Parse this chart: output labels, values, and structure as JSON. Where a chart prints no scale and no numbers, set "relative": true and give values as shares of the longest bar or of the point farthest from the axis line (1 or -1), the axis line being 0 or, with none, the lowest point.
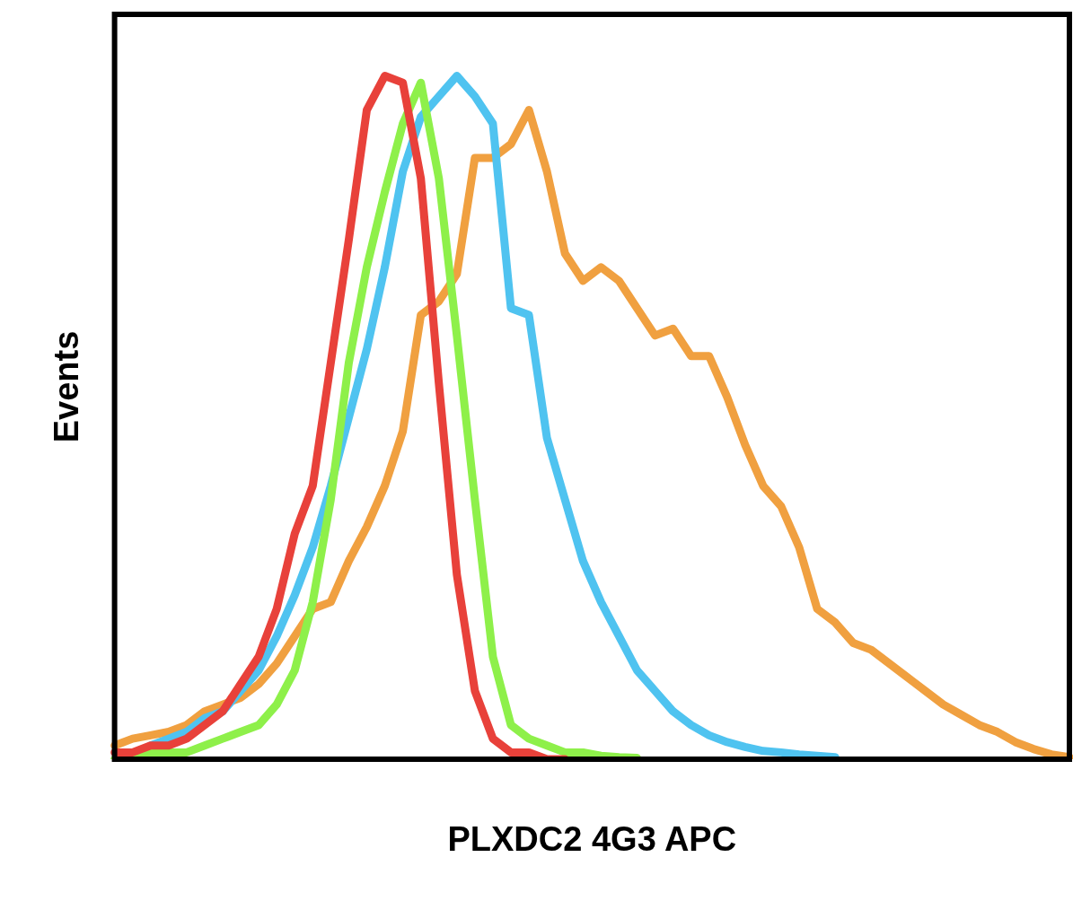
{
  "chart_data": {
    "type": "line",
    "relative": true,
    "xlabel": "PLXDC2 4G3 APC",
    "ylabel": "Events",
    "grid": false,
    "legend": false,
    "marker": "none",
    "line_style": "solid",
    "categories": [
      null,
      null,
      null,
      null,
      null,
      null,
      null,
      null,
      null,
      null,
      null,
      null,
      null,
      null,
      null,
      null,
      null,
      null,
      null,
      null,
      null,
      null,
      null,
      null,
      null,
      null,
      null,
      null,
      null,
      null,
      null,
      null,
      null,
      null,
      null,
      null,
      null,
      null,
      null,
      null,
      null,
      null,
      null,
      null,
      null,
      null,
      null,
      null,
      null,
      null,
      null,
      null,
      null,
      null
    ],
    "series": [
      {
        "color": "#e8413a",
        "values": [
          0.01,
          0.01,
          0.02,
          0.02,
          0.03,
          0.05,
          0.07,
          0.11,
          0.15,
          0.22,
          0.33,
          0.4,
          0.58,
          0.76,
          0.95,
          1.0,
          0.99,
          0.85,
          0.55,
          0.27,
          0.1,
          0.03,
          0.01,
          0.01,
          0,
          0,
          null,
          null,
          null,
          null,
          null,
          null,
          null,
          null,
          null,
          null,
          null,
          null,
          null,
          null,
          null,
          null,
          null,
          null,
          null,
          null,
          null,
          null,
          null,
          null,
          null,
          null,
          null,
          null
        ]
      },
      {
        "color": "#8ef04a",
        "values": [
          0,
          0.005,
          0.01,
          0.01,
          0.01,
          0.02,
          0.03,
          0.04,
          0.05,
          0.08,
          0.13,
          0.23,
          0.38,
          0.58,
          0.72,
          0.83,
          0.93,
          0.99,
          0.85,
          0.62,
          0.38,
          0.15,
          0.05,
          0.03,
          0.02,
          0.01,
          0.01,
          0.005,
          0.003,
          0.002,
          null,
          null,
          null,
          null,
          null,
          null,
          null,
          null,
          null,
          null,
          null,
          null,
          null,
          null,
          null,
          null,
          null,
          null,
          null,
          null,
          null,
          null,
          null,
          null
        ]
      },
      {
        "color": "#4fc3f0",
        "values": [
          null,
          null,
          0.02,
          0.03,
          0.04,
          0.06,
          0.07,
          0.1,
          0.13,
          0.18,
          0.24,
          0.31,
          0.4,
          0.5,
          0.6,
          0.72,
          0.86,
          0.94,
          0.97,
          1.0,
          0.97,
          0.93,
          0.66,
          0.65,
          0.47,
          0.38,
          0.29,
          0.23,
          0.18,
          0.13,
          0.1,
          0.07,
          0.05,
          0.035,
          0.025,
          0.018,
          0.012,
          0.01,
          0.007,
          0.005,
          0.003,
          null,
          null,
          null,
          null,
          null,
          null,
          null,
          null,
          null,
          null,
          null,
          null,
          null
        ]
      },
      {
        "color": "#f0a040",
        "values": [
          0.02,
          0.03,
          0.035,
          0.04,
          0.05,
          0.07,
          0.08,
          0.09,
          0.11,
          0.14,
          0.18,
          0.22,
          0.23,
          0.29,
          0.34,
          0.4,
          0.48,
          0.65,
          0.67,
          0.71,
          0.88,
          0.88,
          0.9,
          0.95,
          0.86,
          0.74,
          0.7,
          0.72,
          0.7,
          0.66,
          0.62,
          0.63,
          0.59,
          0.59,
          0.53,
          0.46,
          0.4,
          0.37,
          0.31,
          0.22,
          0.2,
          0.17,
          0.16,
          0.14,
          0.12,
          0.1,
          0.08,
          0.065,
          0.05,
          0.04,
          0.025,
          0.015,
          0.007,
          0.003
        ]
      }
    ]
  }
}
